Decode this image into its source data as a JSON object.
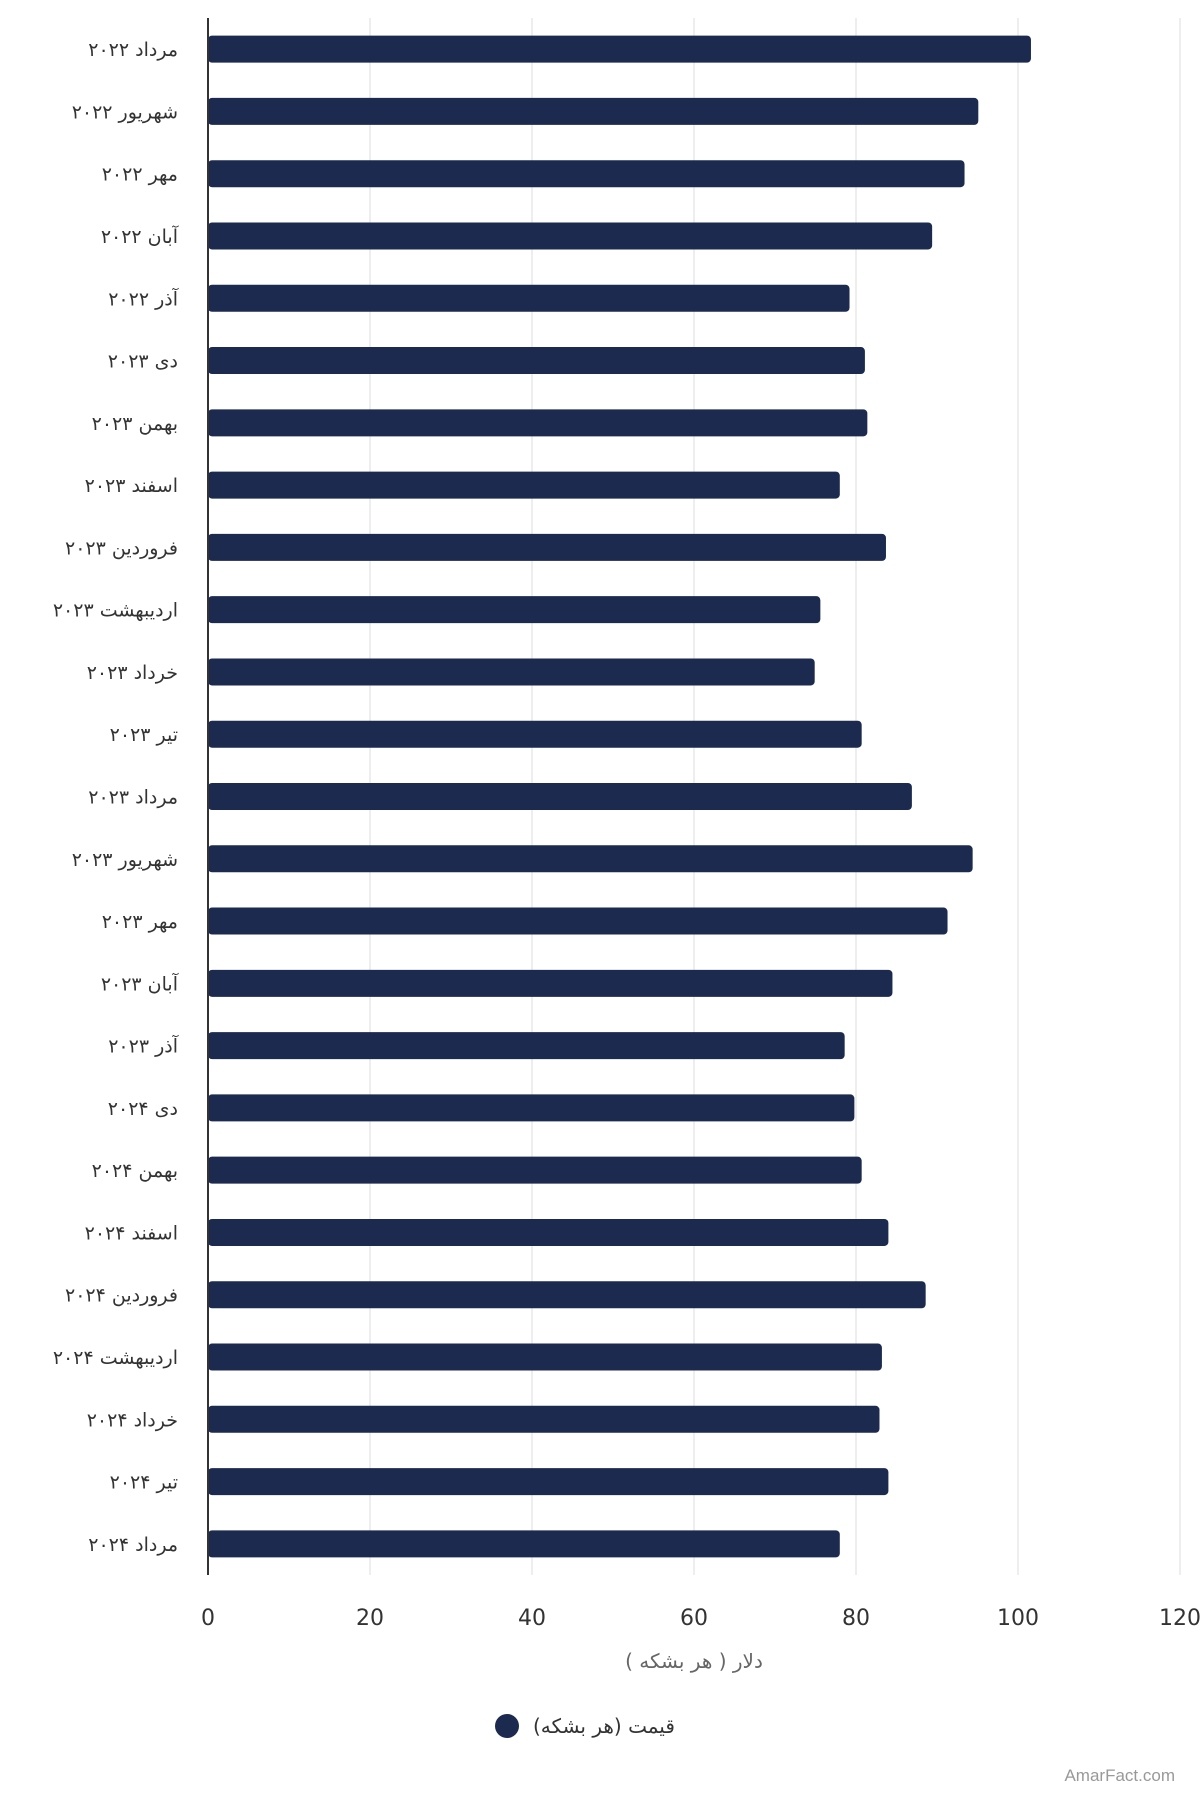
{
  "chart_data": {
    "type": "bar",
    "orientation": "horizontal",
    "categories": [
      "مرداد ۲۰۲۲",
      "شهریور ۲۰۲۲",
      "مهر ۲۰۲۲",
      "آبان ۲۰۲۲",
      "آذر ۲۰۲۲",
      "دی ۲۰۲۳",
      "بهمن ۲۰۲۳",
      "اسفند ۲۰۲۳",
      "فروردین ۲۰۲۳",
      "اردیبهشت ۲۰۲۳",
      "خرداد ۲۰۲۳",
      "تیر ۲۰۲۳",
      "مرداد ۲۰۲۳",
      "شهریور ۲۰۲۳",
      "مهر ۲۰۲۳",
      "آبان ۲۰۲۳",
      "آذر ۲۰۲۳",
      "دی ۲۰۲۴",
      "بهمن ۲۰۲۴",
      "اسفند ۲۰۲۴",
      "فروردین ۲۰۲۴",
      "اردیبهشت ۲۰۲۴",
      "خرداد ۲۰۲۴",
      "تیر ۲۰۲۴",
      "مرداد ۲۰۲۴"
    ],
    "series": [
      {
        "name": "قیمت (هر بشکه)",
        "color": "#1b2a4e",
        "values": [
          101.6,
          95.1,
          93.4,
          89.4,
          79.2,
          81.1,
          81.4,
          78.0,
          83.7,
          75.6,
          74.9,
          80.7,
          86.9,
          94.4,
          91.3,
          84.5,
          78.6,
          79.8,
          80.7,
          84.0,
          88.6,
          83.2,
          82.9,
          84.0,
          78.0
        ]
      }
    ],
    "xlabel": "دلار ( هر بشکه )",
    "xlim": [
      0,
      120
    ],
    "xticks": [
      0,
      20,
      40,
      60,
      80,
      100,
      120
    ],
    "grid": true,
    "legend_position": "bottom-center"
  },
  "credit": "AmarFact.com"
}
